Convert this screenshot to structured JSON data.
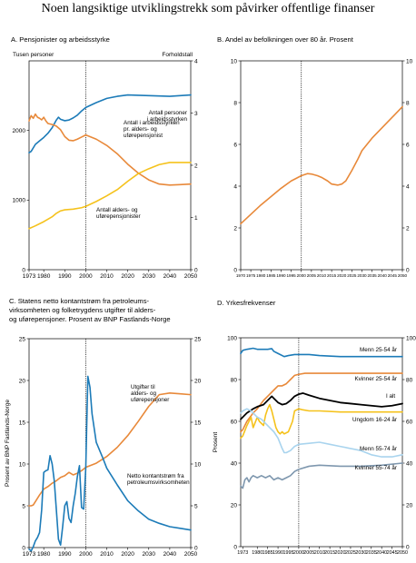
{
  "page": {
    "title": "Noen langsiktige utviklingstrekk som påvirker offentlige finanser"
  },
  "colors": {
    "orange": "#E8893A",
    "blue": "#1C7BB8",
    "yellow": "#F5C21C",
    "black": "#000000",
    "lightblue": "#A9D4EE",
    "grayblue": "#7E97AE",
    "divider": "#000000"
  },
  "chart_data": [
    {
      "id": "A",
      "type": "line",
      "title": "A.   Pensjonister og arbeidsstyrke",
      "ylabel_left": "Tusen personer",
      "ylabel_right": "Forholdstall",
      "xlim": [
        1973,
        2050
      ],
      "ylim_left": [
        0,
        3000
      ],
      "ylim_right": [
        0,
        4
      ],
      "xticks": [
        1973,
        1980,
        1990,
        2000,
        2010,
        2020,
        2030,
        2040,
        2050
      ],
      "yticks_left": [
        0,
        1000,
        2000
      ],
      "yticks_right": [
        0,
        1,
        2,
        3,
        4
      ],
      "divider_x": 2000,
      "series": [
        {
          "name": "Antall personer i arbeidsstyrken",
          "color": "blue",
          "axis": "left",
          "x": [
            1973,
            1974,
            1976,
            1978,
            1980,
            1982,
            1984,
            1986,
            1987,
            1988,
            1990,
            1992,
            1994,
            1996,
            1998,
            2000,
            2005,
            2010,
            2015,
            2020,
            2030,
            2040,
            2050
          ],
          "y": [
            1680,
            1700,
            1800,
            1850,
            1900,
            1960,
            2040,
            2150,
            2190,
            2160,
            2140,
            2150,
            2180,
            2220,
            2280,
            2330,
            2400,
            2460,
            2490,
            2510,
            2500,
            2490,
            2510
          ]
        },
        {
          "name": "Antall i arbeidsstyrken pr. alders- og uførepensjonist",
          "color": "orange",
          "axis": "right",
          "x": [
            1973,
            1974,
            1975,
            1976,
            1977,
            1978,
            1979,
            1980,
            1981,
            1982,
            1984,
            1986,
            1988,
            1990,
            1992,
            1994,
            1996,
            1998,
            2000,
            2005,
            2010,
            2015,
            2020,
            2025,
            2030,
            2035,
            2040,
            2045,
            2050
          ],
          "y": [
            2.85,
            2.95,
            2.9,
            2.98,
            2.92,
            2.9,
            2.87,
            2.92,
            2.85,
            2.8,
            2.78,
            2.75,
            2.68,
            2.55,
            2.48,
            2.47,
            2.5,
            2.54,
            2.58,
            2.5,
            2.38,
            2.22,
            2.02,
            1.85,
            1.72,
            1.64,
            1.62,
            1.63,
            1.64
          ]
        },
        {
          "name": "Antall alders- og uførepensjonister",
          "color": "yellow",
          "axis": "left",
          "x": [
            1973,
            1976,
            1980,
            1984,
            1986,
            1988,
            1990,
            1994,
            1998,
            2000,
            2005,
            2010,
            2015,
            2020,
            2025,
            2030,
            2035,
            2040,
            2045,
            2050
          ],
          "y": [
            590,
            630,
            690,
            760,
            810,
            845,
            860,
            870,
            890,
            910,
            980,
            1060,
            1150,
            1270,
            1380,
            1450,
            1510,
            1540,
            1540,
            1540
          ]
        }
      ],
      "annotations": [
        {
          "lines": [
            "Antall personer",
            "i arbeidsstyrken"
          ]
        },
        {
          "lines": [
            "Antall i arbeidsstyrken",
            "pr. alders- og",
            "uførepensjonist"
          ]
        },
        {
          "lines": [
            "Antall alders- og",
            "uførepensjonister"
          ]
        }
      ]
    },
    {
      "id": "B",
      "type": "line",
      "title": "B.   Andel av befolkningen over 80 år. Prosent",
      "xlim": [
        1970,
        2050
      ],
      "ylim": [
        0,
        10
      ],
      "xticks": [
        1970,
        1975,
        1980,
        1985,
        1990,
        1995,
        2000,
        2005,
        2010,
        2015,
        2020,
        2025,
        2030,
        2035,
        2040,
        2045,
        2050
      ],
      "yticks": [
        0,
        2,
        4,
        6,
        8,
        10
      ],
      "divider_x": 2000,
      "series": [
        {
          "name": "",
          "color": "orange",
          "x": [
            1970,
            1975,
            1980,
            1985,
            1990,
            1995,
            2000,
            2003,
            2005,
            2008,
            2010,
            2013,
            2015,
            2018,
            2020,
            2022,
            2025,
            2028,
            2030,
            2035,
            2040,
            2045,
            2050
          ],
          "y": [
            2.2,
            2.65,
            3.1,
            3.5,
            3.9,
            4.25,
            4.5,
            4.6,
            4.58,
            4.5,
            4.42,
            4.25,
            4.1,
            4.05,
            4.1,
            4.25,
            4.75,
            5.3,
            5.7,
            6.3,
            6.8,
            7.3,
            7.8
          ]
        }
      ]
    },
    {
      "id": "C",
      "type": "line",
      "title_lines": [
        "C.  Statens netto kontantstrøm fra petroleums-",
        "virksomheten og folketrygdens utgifter til alders-",
        "og uførepensjoner. Prosent av BNP Fastlands-Norge"
      ],
      "ylabel_left": "Prosent av BNP Fastlands-Norge",
      "xlim": [
        1973,
        2050
      ],
      "ylim": [
        0,
        25
      ],
      "xticks": [
        1973,
        1980,
        1990,
        2000,
        2010,
        2020,
        2030,
        2040,
        2050
      ],
      "yticks": [
        0,
        5,
        10,
        15,
        20,
        25
      ],
      "divider_x": 2000,
      "series": [
        {
          "name": "Utgifter til alders- og uførepensjoner",
          "color": "orange",
          "x": [
            1973,
            1974,
            1975,
            1976,
            1978,
            1980,
            1982,
            1984,
            1986,
            1988,
            1990,
            1992,
            1994,
            1996,
            1998,
            2000,
            2005,
            2010,
            2015,
            2020,
            2025,
            2030,
            2035,
            2040,
            2045,
            2050
          ],
          "y": [
            5.0,
            5.0,
            5.1,
            5.5,
            6.3,
            7.0,
            7.3,
            7.7,
            8.0,
            8.4,
            8.6,
            9.0,
            8.7,
            8.9,
            9.2,
            9.6,
            10.1,
            10.9,
            12.0,
            13.4,
            15.1,
            16.9,
            18.3,
            18.5,
            18.4,
            18.3
          ]
        },
        {
          "name": "Netto kontantstrøm fra petroleumsvirksomheten",
          "color": "blue",
          "x": [
            1973,
            1974,
            1975,
            1976,
            1977,
            1978,
            1979,
            1980,
            1981,
            1982,
            1983,
            1984,
            1985,
            1986,
            1987,
            1988,
            1989,
            1990,
            1991,
            1992,
            1993,
            1994,
            1995,
            1996,
            1997,
            1998,
            1999,
            2000,
            2001,
            2002,
            2003,
            2005,
            2008,
            2010,
            2015,
            2020,
            2025,
            2030,
            2035,
            2040,
            2045,
            2050
          ],
          "y": [
            -0.2,
            -0.4,
            0.1,
            0.8,
            1.2,
            1.8,
            4.5,
            9.0,
            9.2,
            9.3,
            11.0,
            10.0,
            8.0,
            4.5,
            1.0,
            0.3,
            2.5,
            5.0,
            5.5,
            3.5,
            3.0,
            5.0,
            6.5,
            8.5,
            9.8,
            4.8,
            4.6,
            9.5,
            20.5,
            19.2,
            16.0,
            12.6,
            10.8,
            9.5,
            7.5,
            5.6,
            4.4,
            3.4,
            2.9,
            2.5,
            2.3,
            2.1
          ]
        }
      ],
      "annotations": [
        {
          "lines": [
            "Utgifter til",
            "alders- og",
            "uførepensjoner"
          ]
        },
        {
          "lines": [
            "Netto kontantstrøm fra",
            "petroleumsvirksomheten"
          ]
        }
      ]
    },
    {
      "id": "D",
      "type": "line",
      "title": "D.   Yrkesfrekvenser",
      "ylabel_left": "Prosent",
      "xlim": [
        1972,
        2050
      ],
      "ylim": [
        0,
        100
      ],
      "xticks": [
        1973,
        1980,
        1985,
        1990,
        1995,
        2000,
        2005,
        2010,
        2015,
        2020,
        2025,
        2030,
        2035,
        2040,
        2045,
        2050
      ],
      "yticks": [
        0,
        20,
        40,
        60,
        80,
        100
      ],
      "divider_x": 2000,
      "series": [
        {
          "name": "Menn 25-54 år",
          "color": "blue",
          "x": [
            1972,
            1973,
            1975,
            1978,
            1980,
            1983,
            1985,
            1987,
            1988,
            1990,
            1993,
            1995,
            1998,
            2000,
            2005,
            2010,
            2020,
            2030,
            2040,
            2050
          ],
          "y": [
            92.5,
            94.0,
            94.5,
            95.0,
            94.5,
            94.5,
            94.5,
            94.8,
            93.5,
            92.5,
            91.0,
            91.5,
            92.0,
            92.0,
            92.0,
            91.5,
            91.0,
            91.0,
            91.0,
            91.0
          ]
        },
        {
          "name": "Kvinner 25-54 år",
          "color": "orange",
          "x": [
            1972,
            1973,
            1975,
            1978,
            1980,
            1983,
            1985,
            1988,
            1990,
            1992,
            1994,
            1996,
            1998,
            2000,
            2003,
            2005,
            2010,
            2020,
            2030,
            2040,
            2050
          ],
          "y": [
            55.0,
            56.0,
            60.0,
            64.0,
            66.0,
            70.0,
            72.0,
            75.0,
            77.0,
            77.0,
            78.0,
            80.0,
            82.0,
            82.5,
            83.0,
            83.0,
            83.0,
            83.0,
            83.0,
            83.0,
            83.0
          ]
        },
        {
          "name": "I alt",
          "color": "black",
          "x": [
            1972,
            1973,
            1975,
            1978,
            1980,
            1983,
            1985,
            1987,
            1988,
            1990,
            1992,
            1994,
            1996,
            1998,
            2000,
            2002,
            2005,
            2010,
            2015,
            2020,
            2025,
            2030,
            2035,
            2040,
            2045,
            2050
          ],
          "y": [
            61.0,
            62.0,
            64.0,
            66.0,
            67.0,
            68.0,
            70.0,
            72.0,
            71.0,
            69.0,
            68.0,
            68.5,
            70.0,
            72.0,
            73.0,
            73.5,
            72.5,
            71.0,
            70.0,
            69.0,
            68.5,
            68.0,
            67.5,
            67.0,
            67.5,
            68.5
          ]
        },
        {
          "name": "Ungdom 16-24 år",
          "color": "yellow",
          "x": [
            1972,
            1973,
            1975,
            1977,
            1978,
            1980,
            1981,
            1983,
            1984,
            1985,
            1986,
            1987,
            1988,
            1989,
            1990,
            1991,
            1992,
            1993,
            1995,
            1997,
            1998,
            2000,
            2002,
            2005,
            2010,
            2020,
            2030,
            2040,
            2050
          ],
          "y": [
            52.0,
            53.0,
            58.0,
            62.0,
            57.0,
            62.0,
            60.0,
            58.0,
            63.0,
            66.0,
            68.0,
            65.0,
            61.0,
            57.0,
            55.0,
            54.0,
            55.0,
            54.0,
            55.0,
            60.0,
            65.0,
            66.0,
            65.5,
            65.0,
            65.0,
            64.5,
            64.5,
            64.5,
            64.5
          ]
        },
        {
          "name": "Menn 55-74 år",
          "color": "lightblue",
          "x": [
            1972,
            1973,
            1975,
            1977,
            1980,
            1982,
            1984,
            1986,
            1988,
            1990,
            1992,
            1993,
            1994,
            1996,
            1998,
            2000,
            2005,
            2010,
            2015,
            2020,
            2030,
            2035,
            2040,
            2045,
            2050
          ],
          "y": [
            64.0,
            65.0,
            66.0,
            65.0,
            62.0,
            61.0,
            59.0,
            57.0,
            55.0,
            52.0,
            47.0,
            45.0,
            45.0,
            46.0,
            48.0,
            49.0,
            49.5,
            50.0,
            49.0,
            48.0,
            46.0,
            44.0,
            43.0,
            43.0,
            44.0
          ]
        },
        {
          "name": "Kvinner 55-74 år",
          "color": "grayblue",
          "x": [
            1972,
            1973,
            1974,
            1975,
            1976,
            1977,
            1978,
            1980,
            1982,
            1984,
            1986,
            1988,
            1990,
            1992,
            1994,
            1996,
            1998,
            2000,
            2005,
            2010,
            2020,
            2030,
            2040,
            2050
          ],
          "y": [
            29.0,
            28.0,
            32.0,
            33.0,
            31.0,
            33.0,
            34.0,
            33.0,
            34.0,
            33.0,
            34.0,
            32.0,
            33.0,
            32.0,
            33.0,
            34.0,
            36.0,
            37.0,
            38.5,
            39.0,
            38.5,
            38.5,
            39.0,
            40.0
          ]
        }
      ],
      "annotations": [
        {
          "lines": [
            "Menn 25-54 år"
          ]
        },
        {
          "lines": [
            "Kvinner 25-54 år"
          ]
        },
        {
          "lines": [
            "I alt"
          ]
        },
        {
          "lines": [
            "Ungdom 16-24 år"
          ]
        },
        {
          "lines": [
            "Menn 55-74 år"
          ]
        },
        {
          "lines": [
            "Kvinner 55-74 år"
          ]
        }
      ]
    }
  ]
}
